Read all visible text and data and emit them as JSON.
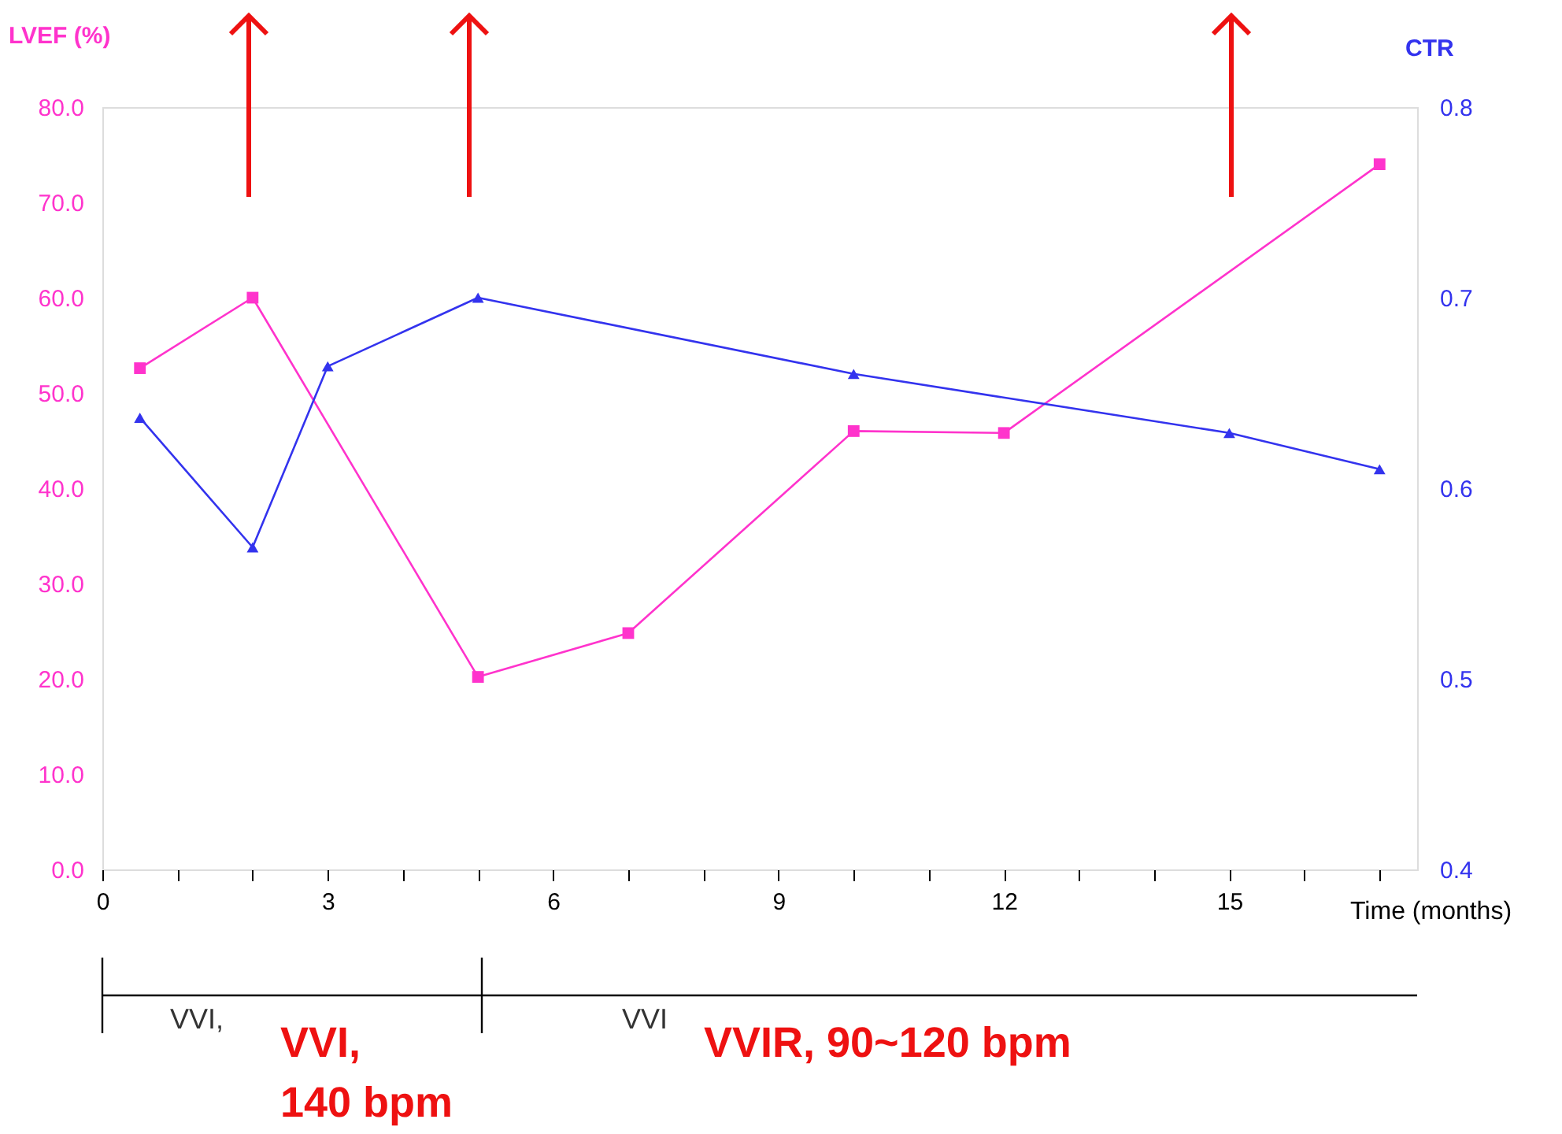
{
  "chart_data": {
    "type": "line",
    "ylabel": "LVEF (%)",
    "y2label": "CTR",
    "xlabel": "Time (months)",
    "xlim": [
      0,
      17.5
    ],
    "xticks": [
      0,
      {
        "value": 1,
        "label": null
      },
      {
        "value": 2,
        "label": null
      },
      3,
      {
        "value": 4,
        "label": null
      },
      {
        "value": 5,
        "label": null
      },
      6,
      {
        "value": 7,
        "label": null
      },
      {
        "value": 8,
        "label": null
      },
      9,
      {
        "value": 10,
        "label": null
      },
      {
        "value": 11,
        "label": null
      },
      12,
      {
        "value": 13,
        "label": null
      },
      {
        "value": 14,
        "label": null
      },
      15,
      {
        "value": 16,
        "label": null
      },
      {
        "value": 17,
        "label": null
      }
    ],
    "ylim": [
      0,
      80
    ],
    "yticks": [
      {
        "value": 0,
        "label": "0.0"
      },
      {
        "value": 10,
        "label": "10.0"
      },
      {
        "value": 20,
        "label": "20.0"
      },
      {
        "value": 30,
        "label": "30.0"
      },
      {
        "value": 40,
        "label": "40.0"
      },
      {
        "value": 50,
        "label": "50.0"
      },
      {
        "value": 60,
        "label": "60.0"
      },
      {
        "value": 70,
        "label": "70.0"
      },
      {
        "value": 80,
        "label": "80.0"
      }
    ],
    "y2lim": [
      0.4,
      0.8
    ],
    "y2ticks": [
      0.4,
      0.5,
      0.6,
      0.7,
      0.8
    ],
    "series": [
      {
        "color": "#ff33cc",
        "marker": "square",
        "x": [
          0.5,
          2,
          5,
          7,
          10,
          12,
          17
        ],
        "values": [
          52.6,
          60,
          20.2,
          24.8,
          46,
          45.8,
          74
        ]
      },
      {
        "color": "#3333ee",
        "marker": "triangle",
        "axis": "y2",
        "x": [
          0.5,
          2,
          3,
          5,
          10,
          15,
          17
        ],
        "values": [
          0.637,
          0.569,
          0.664,
          0.7,
          0.66,
          0.629,
          0.61
        ]
      }
    ],
    "annotations": [
      "VVI,",
      "VVI",
      "VVI,\n140 bpm",
      "VVIR, 90~120  bpm"
    ],
    "grid": false,
    "line_style": "solid"
  }
}
